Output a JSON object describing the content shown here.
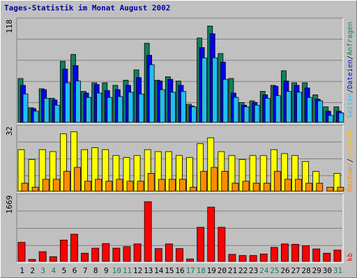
{
  "title": "Tages-Statistik im Monat August 2002",
  "chart_data": [
    {
      "type": "bar",
      "panel": "top",
      "ymax_label": "118",
      "ylim": [
        0,
        118
      ],
      "categories": [
        "1",
        "2",
        "3",
        "4",
        "5",
        "6",
        "7",
        "8",
        "9",
        "10",
        "11",
        "12",
        "13",
        "14",
        "15",
        "16",
        "17",
        "18",
        "19",
        "20",
        "21",
        "22",
        "23",
        "24",
        "25",
        "26",
        "27",
        "28",
        "29",
        "30",
        "31"
      ],
      "series": [
        {
          "name": "Anfragen",
          "color": "#137f5f",
          "values": [
            51,
            17,
            39,
            28,
            71,
            79,
            36,
            46,
            46,
            43,
            49,
            61,
            92,
            49,
            53,
            48,
            21,
            98,
            112,
            80,
            51,
            23,
            25,
            36,
            43,
            60,
            46,
            46,
            32,
            18,
            18
          ]
        },
        {
          "name": "Dateien",
          "color": "#0000ee",
          "values": [
            43,
            16,
            38,
            26,
            62,
            66,
            34,
            44,
            37,
            38,
            43,
            52,
            78,
            48,
            50,
            43,
            19,
            87,
            103,
            70,
            34,
            20,
            23,
            32,
            42,
            48,
            43,
            40,
            27,
            13,
            13
          ]
        },
        {
          "name": "Seiten",
          "color": "#22c0f0",
          "values": [
            33,
            13,
            28,
            20,
            46,
            48,
            29,
            34,
            29,
            30,
            35,
            33,
            67,
            38,
            35,
            36,
            18,
            75,
            75,
            50,
            29,
            18,
            20,
            28,
            31,
            36,
            35,
            29,
            25,
            8,
            11
          ]
        }
      ]
    },
    {
      "type": "bar",
      "panel": "middle",
      "ymax_label": "32",
      "ylim": [
        0,
        32
      ],
      "categories": [
        "1",
        "2",
        "3",
        "4",
        "5",
        "6",
        "7",
        "8",
        "9",
        "10",
        "11",
        "12",
        "13",
        "14",
        "15",
        "16",
        "17",
        "18",
        "19",
        "20",
        "21",
        "22",
        "23",
        "24",
        "25",
        "26",
        "27",
        "28",
        "29",
        "30",
        "31"
      ],
      "series": [
        {
          "name": "Besuche",
          "color": "#ffff00",
          "values": [
            21,
            16,
            21,
            20,
            29,
            30,
            21,
            22,
            21,
            18,
            17,
            18,
            21,
            20,
            20,
            18,
            17,
            24,
            27,
            20,
            18,
            16,
            18,
            18,
            21,
            19,
            18,
            15,
            10,
            0,
            9
          ]
        },
        {
          "name": "Rechner",
          "color": "#ff8c00",
          "values": [
            4,
            2,
            6,
            6,
            10,
            12,
            5,
            6,
            5,
            6,
            5,
            5,
            9,
            6,
            6,
            6,
            2,
            10,
            12,
            10,
            4,
            5,
            4,
            4,
            10,
            6,
            6,
            4,
            4,
            2,
            2
          ]
        }
      ]
    },
    {
      "type": "bar",
      "panel": "bottom",
      "ymax_label": "1669",
      "ylim": [
        0,
        1669
      ],
      "categories": [
        "1",
        "2",
        "3",
        "4",
        "5",
        "6",
        "7",
        "8",
        "9",
        "10",
        "11",
        "12",
        "13",
        "14",
        "15",
        "16",
        "17",
        "18",
        "19",
        "20",
        "21",
        "22",
        "23",
        "24",
        "25",
        "26",
        "27",
        "28",
        "29",
        "30",
        "31"
      ],
      "series": [
        {
          "name": "kb",
          "color": "#ff0000",
          "values": [
            490,
            50,
            250,
            120,
            550,
            700,
            210,
            340,
            460,
            340,
            380,
            450,
            1540,
            330,
            450,
            330,
            60,
            880,
            1400,
            880,
            180,
            150,
            150,
            190,
            360,
            450,
            440,
            400,
            320,
            210,
            290
          ]
        }
      ]
    }
  ],
  "x_axis": {
    "days": [
      "1",
      "2",
      "3",
      "4",
      "5",
      "6",
      "7",
      "8",
      "9",
      "10",
      "11",
      "12",
      "13",
      "14",
      "15",
      "16",
      "17",
      "18",
      "19",
      "20",
      "21",
      "22",
      "23",
      "24",
      "25",
      "26",
      "27",
      "28",
      "29",
      "30",
      "31"
    ],
    "weekend": [
      false,
      false,
      true,
      true,
      false,
      false,
      false,
      false,
      false,
      true,
      true,
      false,
      false,
      false,
      false,
      false,
      true,
      true,
      false,
      false,
      false,
      false,
      false,
      true,
      true,
      false,
      false,
      false,
      false,
      false,
      true
    ],
    "weekday_color": "#000000",
    "weekend_color": "#137f5f"
  },
  "legend_right": {
    "top": [
      {
        "text": "Seiten",
        "color": "#22c0f0"
      },
      {
        "text": "/",
        "color": "#000000"
      },
      {
        "text": "Dateien",
        "color": "#0000ee"
      },
      {
        "text": "/",
        "color": "#000000"
      },
      {
        "text": "Anfragen",
        "color": "#137f5f"
      }
    ],
    "middle": [
      {
        "text": "Rechner",
        "color": "#ff8c00"
      },
      {
        "text": "/",
        "color": "#000000"
      },
      {
        "text": "Besuche",
        "color": "#ffc000"
      }
    ],
    "bottom": [
      {
        "text": "kb",
        "color": "#ff0000"
      }
    ]
  }
}
